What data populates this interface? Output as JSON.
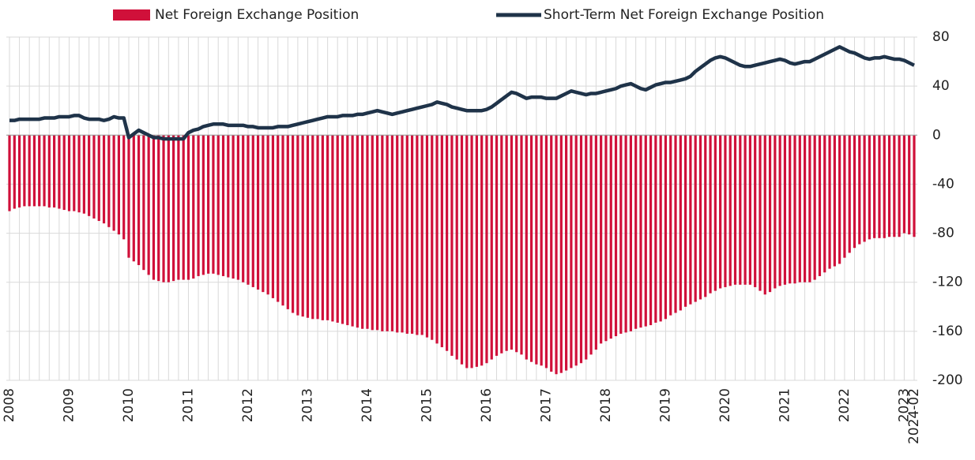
{
  "chart_data": {
    "type": "bar_line",
    "categories": [
      "2008",
      null,
      null,
      null,
      null,
      null,
      null,
      null,
      null,
      null,
      null,
      null,
      "2009",
      null,
      null,
      null,
      null,
      null,
      null,
      null,
      null,
      null,
      null,
      null,
      "2010",
      null,
      null,
      null,
      null,
      null,
      null,
      null,
      null,
      null,
      null,
      null,
      "2011",
      null,
      null,
      null,
      null,
      null,
      null,
      null,
      null,
      null,
      null,
      null,
      "2012",
      null,
      null,
      null,
      null,
      null,
      null,
      null,
      null,
      null,
      null,
      null,
      "2013",
      null,
      null,
      null,
      null,
      null,
      null,
      null,
      null,
      null,
      null,
      null,
      "2014",
      null,
      null,
      null,
      null,
      null,
      null,
      null,
      null,
      null,
      null,
      null,
      "2015",
      null,
      null,
      null,
      null,
      null,
      null,
      null,
      null,
      null,
      null,
      null,
      "2016",
      null,
      null,
      null,
      null,
      null,
      null,
      null,
      null,
      null,
      null,
      null,
      "2017",
      null,
      null,
      null,
      null,
      null,
      null,
      null,
      null,
      null,
      null,
      null,
      "2018",
      null,
      null,
      null,
      null,
      null,
      null,
      null,
      null,
      null,
      null,
      null,
      "2019",
      null,
      null,
      null,
      null,
      null,
      null,
      null,
      null,
      null,
      null,
      null,
      "2020",
      null,
      null,
      null,
      null,
      null,
      null,
      null,
      null,
      null,
      null,
      null,
      "2021",
      null,
      null,
      null,
      null,
      null,
      null,
      null,
      null,
      null,
      null,
      null,
      "2022",
      null,
      null,
      null,
      null,
      null,
      null,
      null,
      null,
      null,
      null,
      null,
      "2023",
      null,
      "2024-02"
    ],
    "series": [
      {
        "name": "Net Foreign Exchange Position",
        "type": "bar",
        "color": "#d0103a",
        "values": [
          -62,
          -60,
          -59,
          -58,
          -58,
          -58,
          -58,
          -58,
          -59,
          -59,
          -60,
          -61,
          -62,
          -62,
          -63,
          -64,
          -66,
          -68,
          -70,
          -72,
          -75,
          -78,
          -81,
          -85,
          -100,
          -103,
          -106,
          -110,
          -114,
          -118,
          -119,
          -120,
          -120,
          -119,
          -118,
          -118,
          -118,
          -117,
          -115,
          -114,
          -113,
          -113,
          -114,
          -115,
          -116,
          -117,
          -118,
          -120,
          -122,
          -124,
          -126,
          -128,
          -130,
          -133,
          -136,
          -139,
          -142,
          -145,
          -147,
          -148,
          -149,
          -150,
          -150,
          -151,
          -151,
          -152,
          -153,
          -154,
          -155,
          -156,
          -157,
          -158,
          -158,
          -159,
          -159,
          -160,
          -160,
          -160,
          -161,
          -161,
          -162,
          -162,
          -163,
          -163,
          -165,
          -167,
          -170,
          -173,
          -176,
          -180,
          -183,
          -187,
          -190,
          -190,
          -189,
          -188,
          -186,
          -183,
          -180,
          -178,
          -176,
          -175,
          -177,
          -179,
          -183,
          -185,
          -187,
          -188,
          -190,
          -193,
          -195,
          -194,
          -192,
          -190,
          -188,
          -186,
          -183,
          -179,
          -175,
          -170,
          -168,
          -166,
          -164,
          -162,
          -161,
          -160,
          -158,
          -157,
          -156,
          -155,
          -153,
          -152,
          -150,
          -147,
          -145,
          -143,
          -140,
          -138,
          -136,
          -134,
          -132,
          -129,
          -127,
          -125,
          -124,
          -123,
          -122,
          -122,
          -122,
          -122,
          -124,
          -127,
          -130,
          -128,
          -125,
          -123,
          -122,
          -121,
          -121,
          -120,
          -120,
          -120,
          -118,
          -115,
          -112,
          -109,
          -107,
          -105,
          -100,
          -96,
          -92,
          -89,
          -87,
          -85,
          -84,
          -84,
          -84,
          -83,
          -83,
          -83,
          -80,
          -81,
          -83
        ]
      },
      {
        "name": "Short-Term Net Foreign Exchange Position",
        "type": "line",
        "color": "#1f3349",
        "values": [
          12,
          12,
          13,
          13,
          13,
          13,
          13,
          14,
          14,
          14,
          15,
          15,
          15,
          16,
          16,
          14,
          13,
          13,
          13,
          12,
          13,
          15,
          14,
          14,
          -2,
          1,
          4,
          2,
          0,
          -2,
          -2,
          -3,
          -3,
          -3,
          -3,
          -3,
          2,
          4,
          5,
          7,
          8,
          9,
          9,
          9,
          8,
          8,
          8,
          8,
          7,
          7,
          6,
          6,
          6,
          6,
          7,
          7,
          7,
          8,
          9,
          10,
          11,
          12,
          13,
          14,
          15,
          15,
          15,
          16,
          16,
          16,
          17,
          17,
          18,
          19,
          20,
          19,
          18,
          17,
          18,
          19,
          20,
          21,
          22,
          23,
          24,
          25,
          27,
          26,
          25,
          23,
          22,
          21,
          20,
          20,
          20,
          20,
          21,
          23,
          26,
          29,
          32,
          35,
          34,
          32,
          30,
          31,
          31,
          31,
          30,
          30,
          30,
          32,
          34,
          36,
          35,
          34,
          33,
          34,
          34,
          35,
          36,
          37,
          38,
          40,
          41,
          42,
          40,
          38,
          37,
          39,
          41,
          42,
          43,
          43,
          44,
          45,
          46,
          48,
          52,
          55,
          58,
          61,
          63,
          64,
          63,
          61,
          59,
          57,
          56,
          56,
          57,
          58,
          59,
          60,
          61,
          62,
          61,
          59,
          58,
          59,
          60,
          60,
          62,
          64,
          66,
          68,
          70,
          72,
          70,
          68,
          67,
          65,
          63,
          62,
          63,
          63,
          64,
          63,
          62,
          62,
          61,
          59,
          57
        ]
      }
    ],
    "ylim": [
      -200,
      80
    ],
    "yticks": [
      -200,
      -160,
      -120,
      -80,
      -40,
      0,
      40,
      80
    ],
    "grid": true,
    "legend": "top"
  }
}
